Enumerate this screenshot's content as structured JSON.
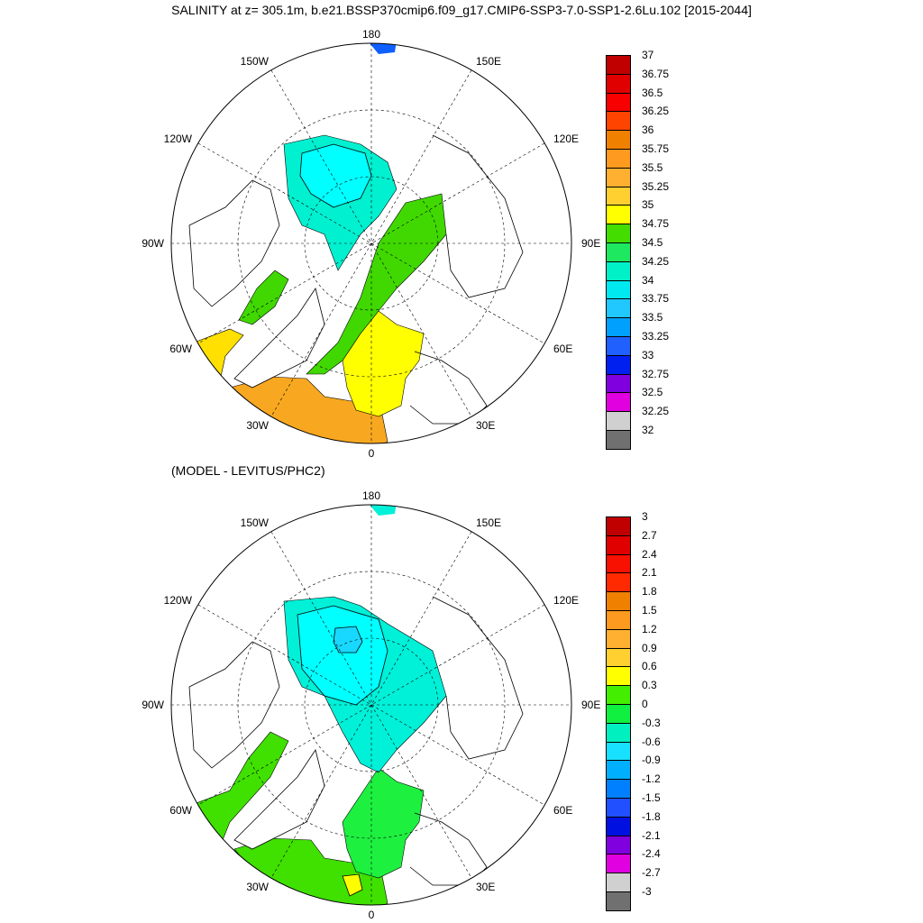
{
  "title": "SALINITY at z= 305.1m, b.e21.BSSP370cmip6.f09_g17.CMIP6-SSP3-7.0-SSP1-2.6Lu.102 [2015-2044]",
  "subtitle": "(MODEL - LEVITUS/PHC2)",
  "lon_labels": {
    "top": "180",
    "bottom": "0",
    "left": "90W",
    "right": "90E",
    "upper_left_1": "150W",
    "upper_left_2": "120W",
    "lower_left_1": "60W",
    "lower_left_2": "30W",
    "upper_right_1": "150E",
    "upper_right_2": "120E",
    "lower_right_1": "60E",
    "lower_right_2": "30E"
  },
  "colorbar_top": {
    "labels": [
      "37",
      "36.75",
      "36.5",
      "36.25",
      "36",
      "35.75",
      "35.5",
      "35.25",
      "35",
      "34.75",
      "34.5",
      "34.25",
      "34",
      "33.75",
      "33.5",
      "33.25",
      "33",
      "32.75",
      "32.5",
      "32.25",
      "32"
    ],
    "colors": [
      "#c00000",
      "#e00000",
      "#f80000",
      "#ff4400",
      "#f08000",
      "#ff9a20",
      "#ffb030",
      "#ffd030",
      "#ffff00",
      "#44dd00",
      "#1ee860",
      "#00f0c8",
      "#00e8f0",
      "#20c8ff",
      "#00a0ff",
      "#2060ff",
      "#0020f0",
      "#8000e0",
      "#e000e0",
      "#d0d0d0",
      "#707070"
    ]
  },
  "colorbar_bottom": {
    "labels": [
      "3",
      "2.7",
      "2.4",
      "2.1",
      "1.8",
      "1.5",
      "1.2",
      "0.9",
      "0.6",
      "0.3",
      "0",
      "-0.3",
      "-0.6",
      "-0.9",
      "-1.2",
      "-1.5",
      "-1.8",
      "-2.1",
      "-2.4",
      "-2.7",
      "-3"
    ],
    "colors": [
      "#c00000",
      "#e00000",
      "#f81000",
      "#ff2a00",
      "#f08000",
      "#ff9a20",
      "#ffb030",
      "#ffd030",
      "#ffff00",
      "#44ee00",
      "#10f040",
      "#00f0c0",
      "#18e0ff",
      "#00b0ff",
      "#0080ff",
      "#2050ff",
      "#0010e0",
      "#8000e0",
      "#e000e0",
      "#d0d0d0",
      "#707070"
    ]
  }
}
